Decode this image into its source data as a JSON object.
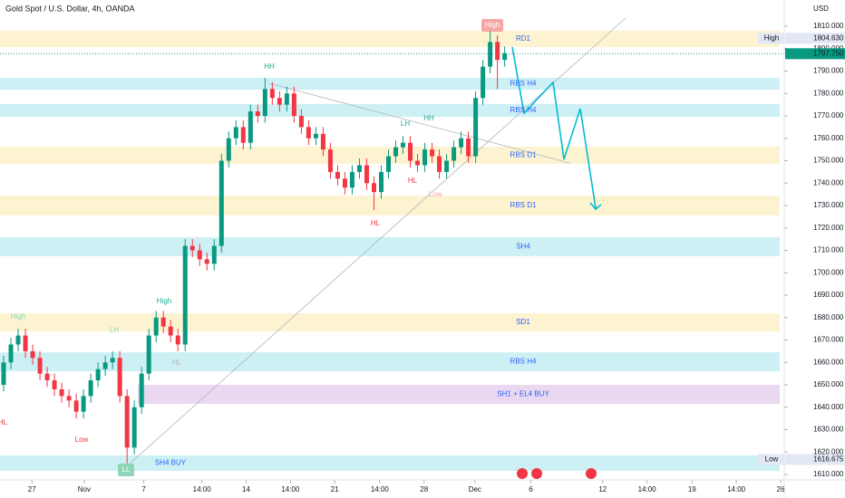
{
  "chart_data": {
    "type": "candlestick",
    "title": "Gold Spot / U.S. Dollar, 4h, OANDA",
    "currency": "USD",
    "up_color": "#089981",
    "down_color": "#f23645",
    "open": [
      1650,
      1660,
      1668,
      1672,
      1665,
      1662,
      1655,
      1652,
      1648,
      1645,
      1643,
      1638,
      1645,
      1652,
      1657,
      1660,
      1662,
      1645,
      1622,
      1640,
      1655,
      1672,
      1680,
      1676,
      1672,
      1668,
      1712,
      1710,
      1706,
      1704,
      1712,
      1750,
      1760,
      1765,
      1758,
      1772,
      1770,
      1782,
      1778,
      1775,
      1780,
      1770,
      1765,
      1760,
      1762,
      1755,
      1745,
      1742,
      1738,
      1745,
      1748,
      1740,
      1736,
      1745,
      1752,
      1756,
      1758,
      1750,
      1748,
      1755,
      1752,
      1745,
      1750,
      1756,
      1760,
      1752,
      1778,
      1792,
      1803,
      1795
    ],
    "high": [
      1663,
      1671,
      1675,
      1675,
      1668,
      1665,
      1658,
      1655,
      1651,
      1648,
      1646,
      1648,
      1655,
      1660,
      1663,
      1665,
      1665,
      1648,
      1643,
      1658,
      1675,
      1683,
      1683,
      1679,
      1675,
      1715,
      1715,
      1713,
      1709,
      1715,
      1753,
      1763,
      1768,
      1768,
      1775,
      1775,
      1787,
      1785,
      1781,
      1783,
      1783,
      1773,
      1768,
      1765,
      1765,
      1758,
      1748,
      1745,
      1748,
      1751,
      1751,
      1743,
      1748,
      1755,
      1759,
      1761,
      1761,
      1753,
      1758,
      1758,
      1755,
      1753,
      1759,
      1763,
      1763,
      1781,
      1795,
      1808,
      1806,
      1801
    ],
    "low": [
      1647,
      1657,
      1665,
      1662,
      1659,
      1652,
      1649,
      1645,
      1642,
      1640,
      1635,
      1635,
      1642,
      1649,
      1654,
      1657,
      1642,
      1615,
      1619,
      1637,
      1652,
      1669,
      1673,
      1669,
      1665,
      1665,
      1707,
      1703,
      1701,
      1701,
      1709,
      1747,
      1757,
      1755,
      1755,
      1767,
      1767,
      1775,
      1772,
      1772,
      1767,
      1762,
      1757,
      1757,
      1752,
      1742,
      1739,
      1735,
      1735,
      1742,
      1737,
      1728,
      1733,
      1742,
      1749,
      1753,
      1747,
      1745,
      1745,
      1749,
      1742,
      1742,
      1747,
      1753,
      1749,
      1749,
      1775,
      1789,
      1782,
      1792
    ],
    "close": [
      1660,
      1668,
      1672,
      1665,
      1662,
      1655,
      1652,
      1648,
      1645,
      1643,
      1638,
      1645,
      1652,
      1657,
      1660,
      1662,
      1645,
      1622,
      1640,
      1655,
      1672,
      1680,
      1676,
      1672,
      1668,
      1712,
      1710,
      1706,
      1704,
      1712,
      1750,
      1760,
      1765,
      1758,
      1772,
      1770,
      1782,
      1778,
      1775,
      1780,
      1770,
      1765,
      1760,
      1762,
      1755,
      1745,
      1742,
      1738,
      1745,
      1748,
      1740,
      1736,
      1745,
      1752,
      1756,
      1758,
      1750,
      1748,
      1755,
      1752,
      1745,
      1750,
      1756,
      1760,
      1752,
      1778,
      1792,
      1803,
      1795,
      1798
    ],
    "xlim": [
      0,
      108
    ],
    "xticks": [
      {
        "value": 4.4,
        "label": "27"
      },
      {
        "value": 11.6,
        "label": "Nov"
      },
      {
        "value": 19.8,
        "label": "7"
      },
      {
        "value": 27.8,
        "label": "14:00"
      },
      {
        "value": 33.9,
        "label": "14"
      },
      {
        "value": 40,
        "label": "14:00"
      },
      {
        "value": 46.1,
        "label": "21"
      },
      {
        "value": 52.3,
        "label": "14:00"
      },
      {
        "value": 58.4,
        "label": "28"
      },
      {
        "value": 65.4,
        "label": "Dec"
      },
      {
        "value": 73.1,
        "label": "6"
      },
      {
        "value": 83,
        "label": "12"
      },
      {
        "value": 89.1,
        "label": "14:00"
      },
      {
        "value": 95.3,
        "label": "19"
      },
      {
        "value": 101.4,
        "label": "14:00"
      },
      {
        "value": 107.5,
        "label": "26"
      }
    ],
    "ylim": [
      1606,
      1816
    ],
    "yticks": [
      {
        "value": 1610,
        "label": "1610.000"
      },
      {
        "value": 1620,
        "label": "1620.000"
      },
      {
        "value": 1630,
        "label": "1630.000"
      },
      {
        "value": 1640,
        "label": "1640.000"
      },
      {
        "value": 1650,
        "label": "1650.000"
      },
      {
        "value": 1660,
        "label": "1660.000"
      },
      {
        "value": 1670,
        "label": "1670.000"
      },
      {
        "value": 1680,
        "label": "1680.000"
      },
      {
        "value": 1690,
        "label": "1690.000"
      },
      {
        "value": 1700,
        "label": "1700.000"
      },
      {
        "value": 1710,
        "label": "1710.000"
      },
      {
        "value": 1720,
        "label": "1720.000"
      },
      {
        "value": 1730,
        "label": "1730.000"
      },
      {
        "value": 1740,
        "label": "1740.000"
      },
      {
        "value": 1750,
        "label": "1750.000"
      },
      {
        "value": 1760,
        "label": "1760.000"
      },
      {
        "value": 1770,
        "label": "1770.000"
      },
      {
        "value": 1780,
        "label": "1780.000"
      },
      {
        "value": 1790,
        "label": "1790.000"
      },
      {
        "value": 1800,
        "label": "1800.000"
      },
      {
        "value": 1810,
        "label": "1810.000"
      }
    ],
    "zones": [
      {
        "label": "RD1",
        "top": 1808,
        "bottom": 1800.7,
        "color": "#fdf3d0"
      },
      {
        "label": "RBS H4",
        "top": 1787,
        "bottom": 1781.7,
        "color": "#cdf0f5"
      },
      {
        "label": "RBS H4",
        "top": 1775.3,
        "bottom": 1769.6,
        "color": "#cdf0f5"
      },
      {
        "label": "RBS D1",
        "top": 1756.3,
        "bottom": 1748.6,
        "color": "#fdf3d0"
      },
      {
        "label": "RBS D1",
        "top": 1734.4,
        "bottom": 1725.6,
        "color": "#fdf3d0"
      },
      {
        "label": "SH4",
        "top": 1715.9,
        "bottom": 1707.4,
        "color": "#cdf0f5"
      },
      {
        "label": "SD1",
        "top": 1681.9,
        "bottom": 1673.8,
        "color": "#fdf3d0"
      },
      {
        "label": "RBS H4",
        "top": 1664.5,
        "bottom": 1656,
        "color": "#cdf0f5"
      },
      {
        "label": "SH1 + EL4 BUY",
        "top": 1650,
        "bottom": 1641.5,
        "color": "#ead7f0"
      },
      {
        "label": "SH4 BUY",
        "top": 1618.5,
        "bottom": 1611.6,
        "color": "#cdf0f5"
      }
    ],
    "annotations": [
      {
        "text": "High",
        "color": "#ffffff"
      },
      {
        "text": "HH",
        "color": "#22ab94"
      },
      {
        "text": "LH",
        "color": "#22ab94"
      },
      {
        "text": "HH",
        "color": "#22ab94"
      },
      {
        "text": "HL",
        "color": "#f23645"
      },
      {
        "text": "Low",
        "color": "#f7a5a5"
      },
      {
        "text": "HL",
        "color": "#f23645"
      },
      {
        "text": "High",
        "color": "#22ab94"
      },
      {
        "text": "High",
        "color": "#8fd6b8"
      },
      {
        "text": "LH",
        "color": "#8fd6b8"
      },
      {
        "text": "HL",
        "color": "#b2b5be"
      },
      {
        "text": "HL",
        "color": "#f23645"
      },
      {
        "text": "Low",
        "color": "#f23645"
      },
      {
        "text": "LL",
        "color": "#ffffff"
      }
    ],
    "price_tags": [
      {
        "name": "High",
        "price": {
          "value": 1804.63,
          "label": "1804.630"
        },
        "color": "#e3e8f5"
      },
      {
        "price": {
          "value": 1797.75,
          "label": "1797.750"
        },
        "color": "#089981"
      },
      {
        "name": "Low",
        "price": {
          "value": 1616.675,
          "label": "1616.675"
        },
        "color": "#e3e8f5"
      }
    ]
  }
}
